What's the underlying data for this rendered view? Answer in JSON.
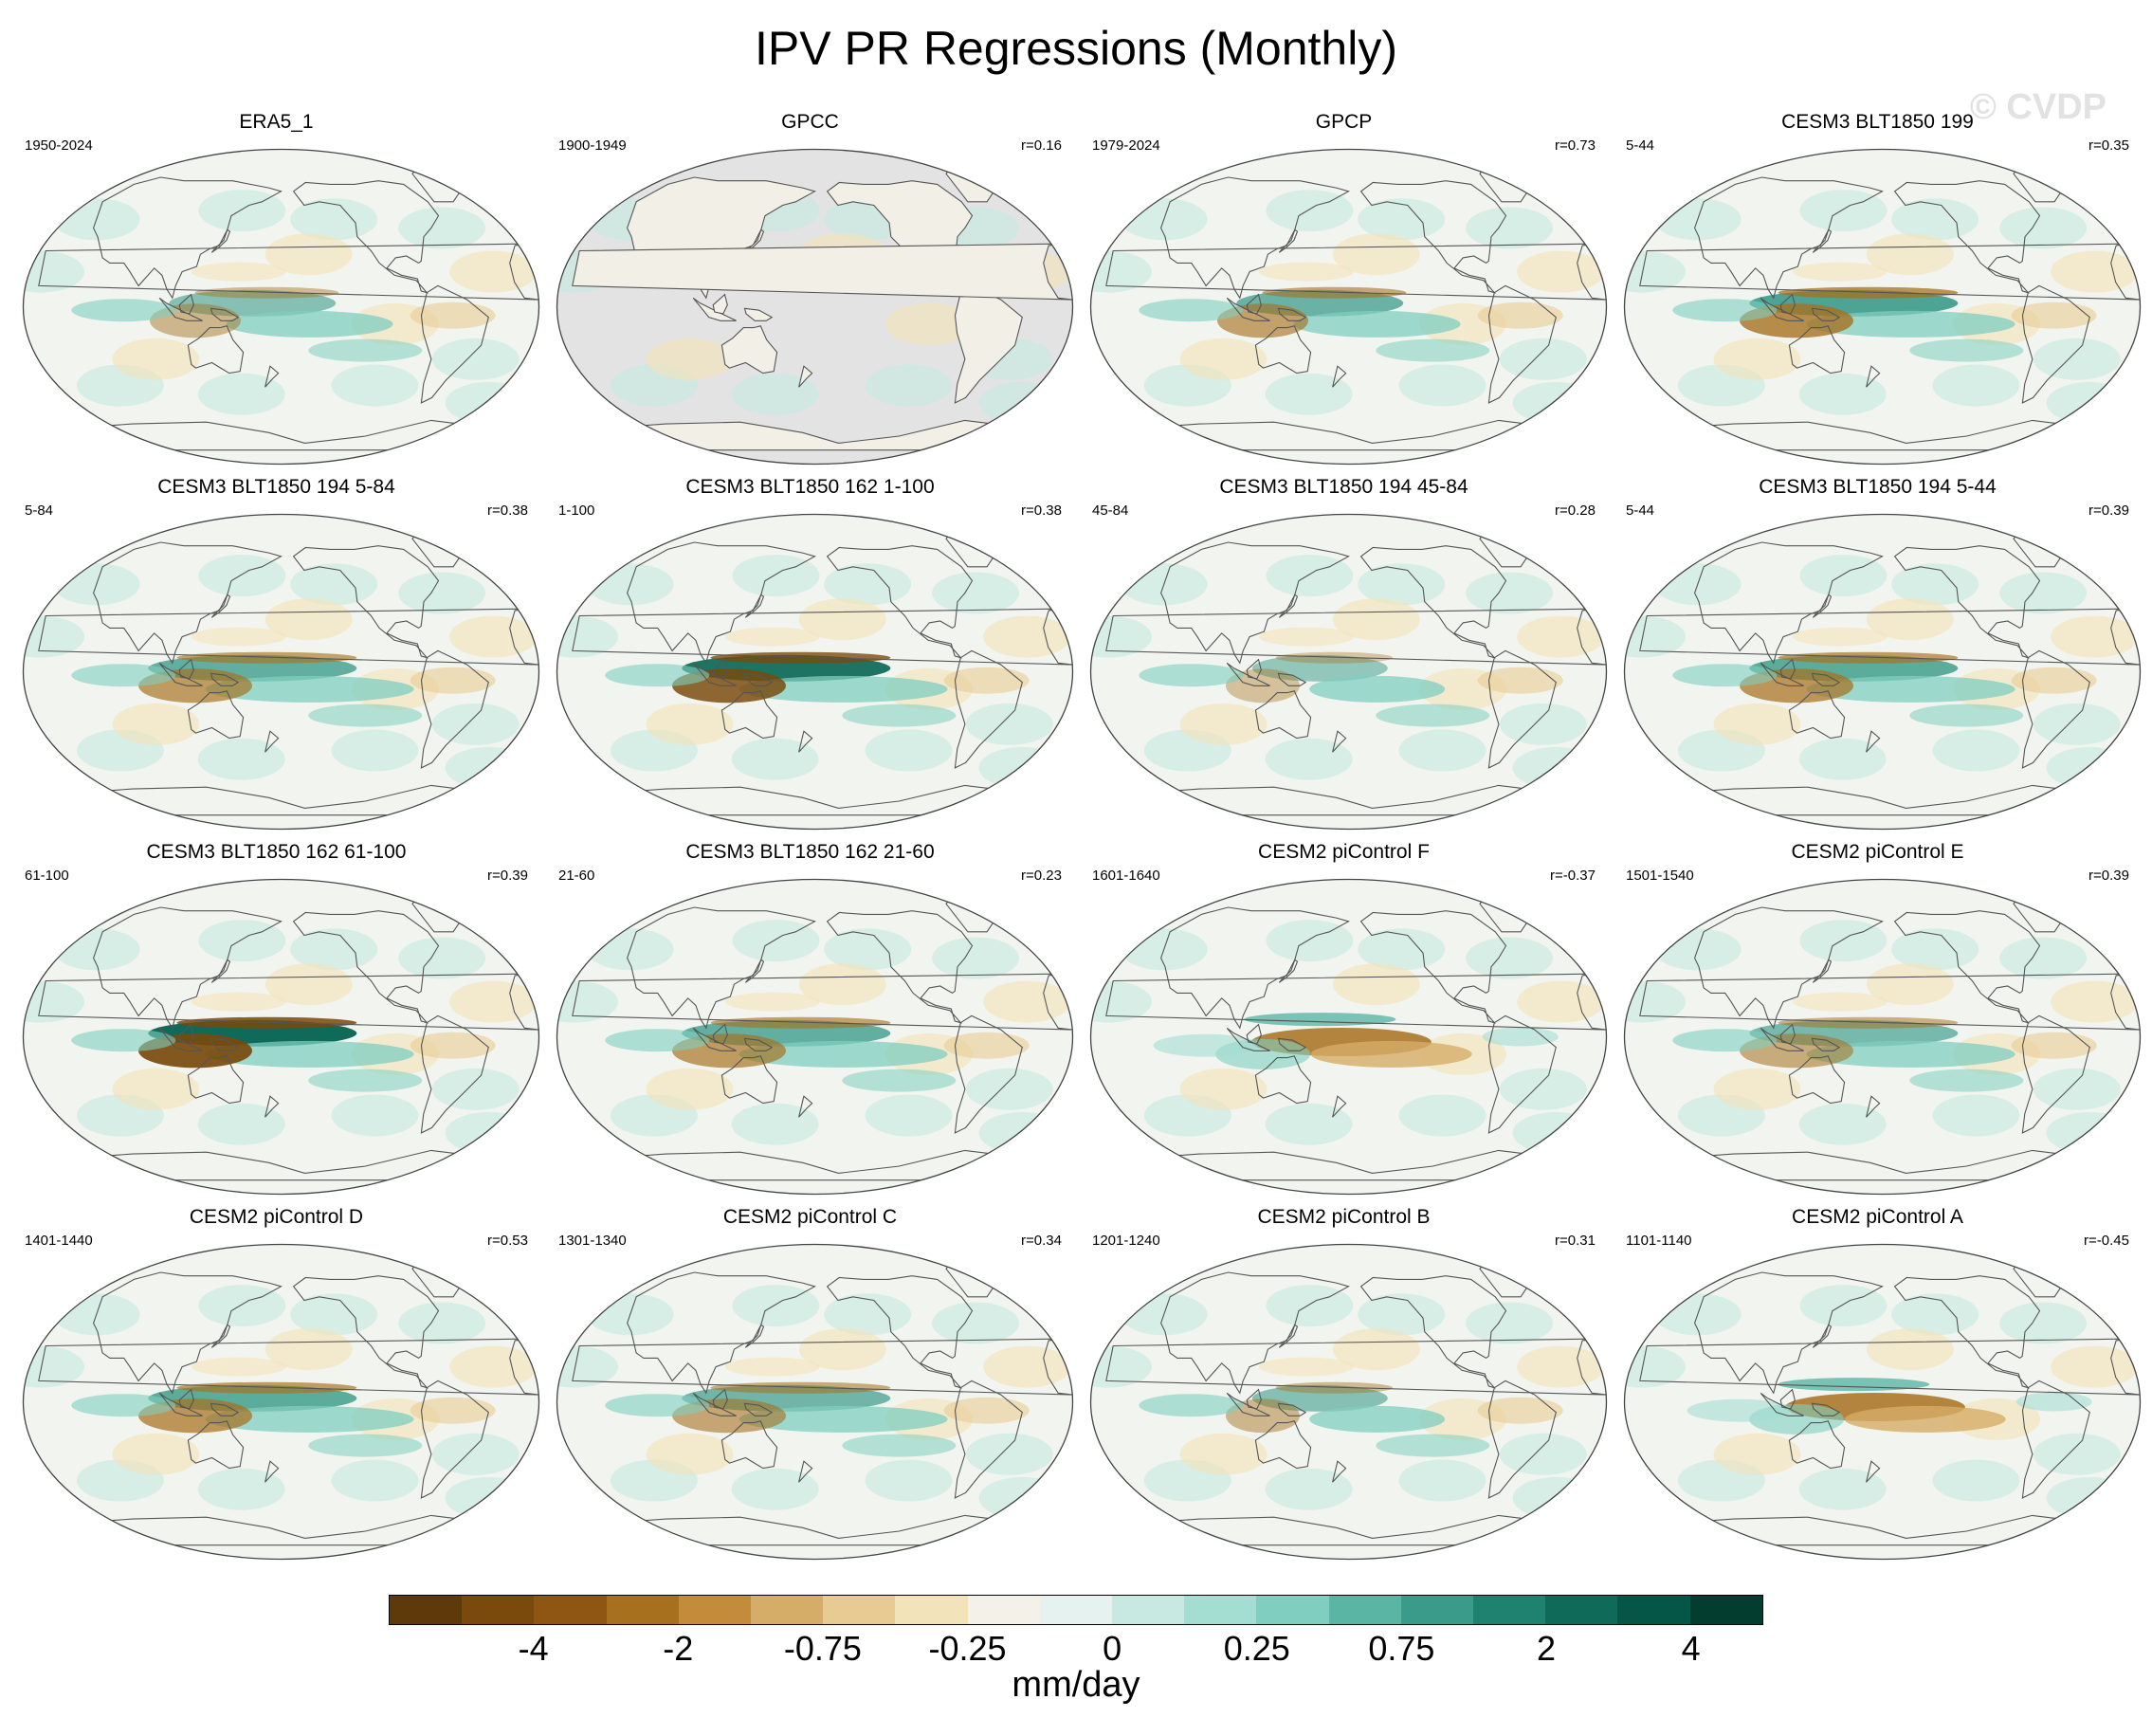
{
  "title": "IPV PR Regressions (Monthly)",
  "watermark": "© CVDP",
  "panels": [
    {
      "name": "ERA5_1",
      "period": "1950-2024",
      "corr": "",
      "pattern": "obs",
      "amp": 0.6
    },
    {
      "name": "GPCC",
      "period": "1900-1949",
      "corr": "r=0.16",
      "pattern": "landonly",
      "amp": 0.4
    },
    {
      "name": "GPCP",
      "period": "1979-2024",
      "corr": "r=0.73",
      "pattern": "obs2",
      "amp": 0.8
    },
    {
      "name": "CESM3 BLT1850 199",
      "period": "5-44",
      "corr": "r=0.35",
      "pattern": "strong",
      "amp": 1.0
    },
    {
      "name": "CESM3 BLT1850 194 5-84",
      "period": "5-84",
      "corr": "r=0.38",
      "pattern": "strong",
      "amp": 0.85
    },
    {
      "name": "CESM3 BLT1850 162 1-100",
      "period": "1-100",
      "corr": "r=0.38",
      "pattern": "strong",
      "amp": 1.05
    },
    {
      "name": "CESM3 BLT1850 194 45-84",
      "period": "45-84",
      "corr": "r=0.28",
      "pattern": "weak",
      "amp": 0.5
    },
    {
      "name": "CESM3 BLT1850 194 5-44",
      "period": "5-44",
      "corr": "r=0.39",
      "pattern": "strong",
      "amp": 0.9
    },
    {
      "name": "CESM3 BLT1850 162 61-100",
      "period": "61-100",
      "corr": "r=0.39",
      "pattern": "strong",
      "amp": 1.15
    },
    {
      "name": "CESM3 BLT1850 162 21-60",
      "period": "21-60",
      "corr": "r=0.23",
      "pattern": "strong",
      "amp": 0.85
    },
    {
      "name": "CESM2 piControl F",
      "period": "1601-1640",
      "corr": "r=-0.37",
      "pattern": "neg",
      "amp": 0.75
    },
    {
      "name": "CESM2 piControl E",
      "period": "1501-1540",
      "corr": "r=0.39",
      "pattern": "strong",
      "amp": 0.7
    },
    {
      "name": "CESM2 piControl D",
      "period": "1401-1440",
      "corr": "r=0.53",
      "pattern": "strong",
      "amp": 0.9
    },
    {
      "name": "CESM2 piControl C",
      "period": "1301-1340",
      "corr": "r=0.34",
      "pattern": "strong",
      "amp": 0.75
    },
    {
      "name": "CESM2 piControl B",
      "period": "1201-1240",
      "corr": "r=0.31",
      "pattern": "weak",
      "amp": 0.6
    },
    {
      "name": "CESM2 piControl A",
      "period": "1101-1140",
      "corr": "r=-0.45",
      "pattern": "neg",
      "amp": 0.9
    }
  ],
  "colorbar": {
    "colors": [
      "#5e3a0a",
      "#7a4a0c",
      "#8f5512",
      "#a7701f",
      "#c28c3a",
      "#d6ad68",
      "#e8cb93",
      "#f3e3bb",
      "#f4f1e8",
      "#e6f2f0",
      "#c7e9e2",
      "#a4ded3",
      "#7fcebf",
      "#5bb5a5",
      "#3b9b8b",
      "#1f8170",
      "#0f6a5a",
      "#055646",
      "#023d30"
    ],
    "ticks": [
      "-4",
      "-2",
      "-0.75",
      "-0.25",
      "0",
      "0.25",
      "0.75",
      "2",
      "4"
    ],
    "units": "mm/day"
  }
}
